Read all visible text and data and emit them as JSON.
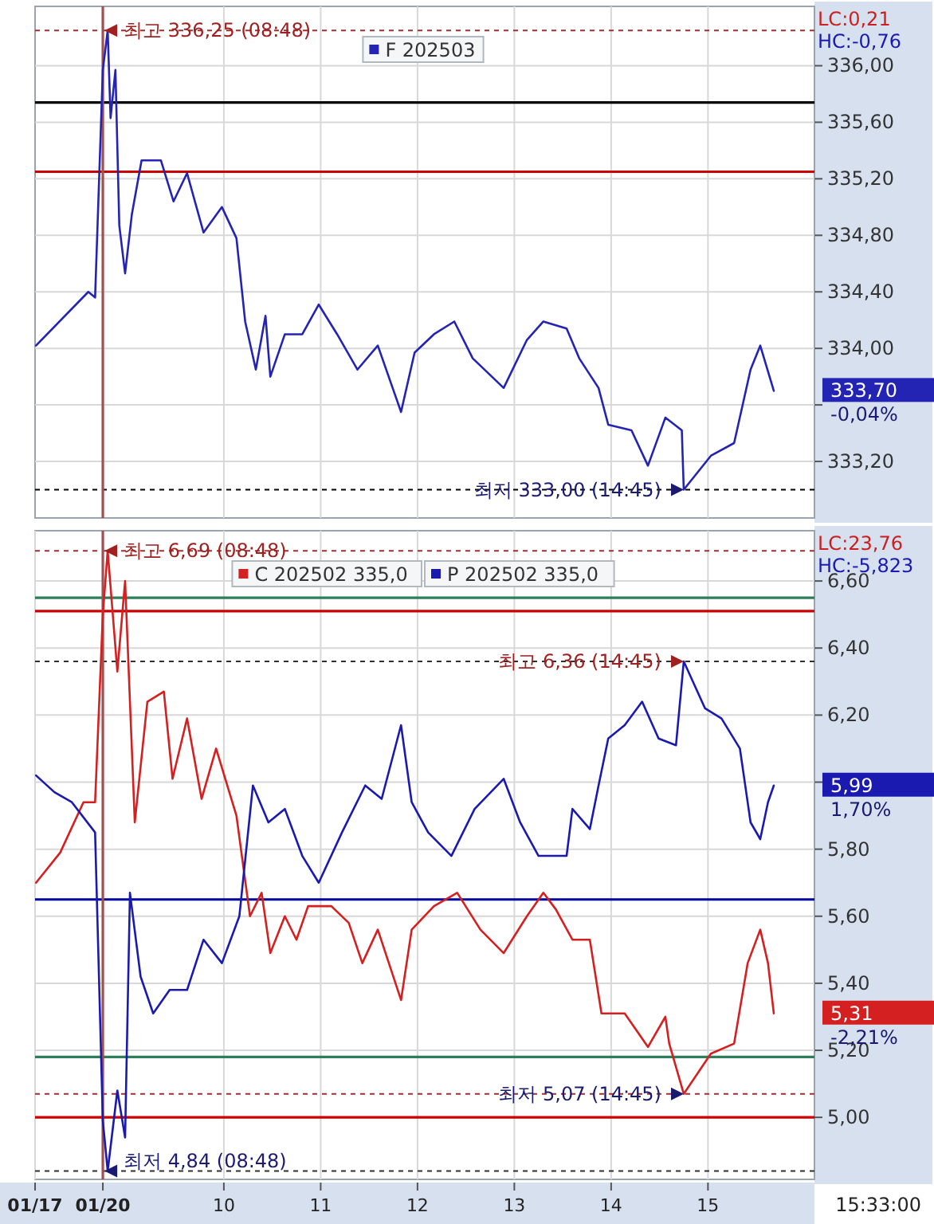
{
  "chart_data": [
    {
      "type": "line",
      "xlim": [
        8.05,
        16.1
      ],
      "ylim": [
        332.8,
        336.42
      ],
      "xticks": [
        {
          "value": 10,
          "label": null
        },
        {
          "value": 11,
          "label": null
        },
        {
          "value": 12,
          "label": null
        },
        {
          "value": 13,
          "label": null
        },
        {
          "value": 14,
          "label": null
        },
        {
          "value": 15,
          "label": null
        }
      ],
      "yticks": [
        {
          "value": 333.2,
          "label": "333,20"
        },
        {
          "value": 333.6,
          "label": null
        },
        {
          "value": 334,
          "label": "334,00"
        },
        {
          "value": 334.4,
          "label": "334,40"
        },
        {
          "value": 334.8,
          "label": "334,80"
        },
        {
          "value": 335.2,
          "label": "335,20"
        },
        {
          "value": 335.6,
          "label": "335,60"
        },
        {
          "value": 336,
          "label": "336,00"
        }
      ],
      "tick_labels": "y",
      "grid": true,
      "legend": "top",
      "line_style": "solid",
      "series": [
        {
          "name": "F 202503",
          "color": "#2424b4",
          "x": [
            8.06,
            8.6,
            8.67,
            8.75,
            8.8,
            8.83,
            8.88,
            8.92,
            8.98,
            9.05,
            9.15,
            9.35,
            9.48,
            9.62,
            9.79,
            9.98,
            10.13,
            10.22,
            10.33,
            10.43,
            10.48,
            10.63,
            10.81,
            10.98,
            11.17,
            11.38,
            11.59,
            11.83,
            11.97,
            12.17,
            12.38,
            12.57,
            12.89,
            13.13,
            13.3,
            13.54,
            13.67,
            13.87,
            13.97,
            14.21,
            14.38,
            14.56,
            14.73,
            14.75,
            15.03,
            15.27,
            15.44,
            15.54,
            15.68
          ],
          "values": [
            334.02,
            334.4,
            334.36,
            335.97,
            336.25,
            335.63,
            335.97,
            334.87,
            334.53,
            334.95,
            335.33,
            335.33,
            335.04,
            335.24,
            334.82,
            335.0,
            334.78,
            334.19,
            333.85,
            334.23,
            333.8,
            334.1,
            334.1,
            334.31,
            334.1,
            333.85,
            334.02,
            333.55,
            333.97,
            334.1,
            334.19,
            333.93,
            333.72,
            334.06,
            334.19,
            334.14,
            333.93,
            333.72,
            333.46,
            333.42,
            333.17,
            333.51,
            333.42,
            333.0,
            333.24,
            333.33,
            333.85,
            334.02,
            333.7
          ]
        }
      ],
      "ref_lines": [
        {
          "axis": "y",
          "value": 335.74,
          "color": "#000000",
          "line_style": "solid"
        },
        {
          "axis": "y",
          "value": 335.25,
          "color": "#cc0000",
          "line_style": "solid"
        },
        {
          "axis": "y",
          "value": 336.25,
          "color": "#a03030",
          "line_style": "dashed"
        },
        {
          "axis": "y",
          "value": 333.0,
          "color": "#000000",
          "line_style": "dashed"
        },
        {
          "axis": "x",
          "value": 8.75,
          "color": "#a05050",
          "line_style": "solid"
        }
      ],
      "annotations": [
        "LC:0,21",
        "HC:-0,76",
        {
          "text": "최고 336,25 (08:48)",
          "x": 8.8,
          "y": 336.25
        },
        {
          "text": "최저 333,00 (14:45)",
          "x": 14.75,
          "y": 333.0
        },
        {
          "text": "333,70",
          "x": 15.68,
          "y": 333.7
        },
        "-0,04%"
      ]
    },
    {
      "type": "line",
      "xlim": [
        8.05,
        16.1
      ],
      "ylim": [
        4.815,
        6.75
      ],
      "xticks": [
        {
          "value": 8.05,
          "label": "01/17"
        },
        {
          "value": 8.75,
          "label": "01/20"
        },
        {
          "value": 10,
          "label": "10"
        },
        {
          "value": 11,
          "label": "11"
        },
        {
          "value": 12,
          "label": "12"
        },
        {
          "value": 13,
          "label": "13"
        },
        {
          "value": 14,
          "label": "14"
        },
        {
          "value": 15,
          "label": "15"
        }
      ],
      "yticks": [
        {
          "value": 5.0,
          "label": "5,00"
        },
        {
          "value": 5.2,
          "label": "5,20"
        },
        {
          "value": 5.4,
          "label": "5,40"
        },
        {
          "value": 5.6,
          "label": "5,60"
        },
        {
          "value": 5.8,
          "label": "5,80"
        },
        {
          "value": 6.0,
          "label": null
        },
        {
          "value": 6.2,
          "label": "6,20"
        },
        {
          "value": 6.4,
          "label": "6,40"
        },
        {
          "value": 6.6,
          "label": "6,60"
        }
      ],
      "grid": true,
      "legend": "top",
      "line_style": "solid",
      "series": [
        {
          "name": "C 202502 335,0",
          "color": "#d42020",
          "x": [
            8.06,
            8.31,
            8.55,
            8.67,
            8.75,
            8.8,
            8.9,
            8.98,
            9.08,
            9.21,
            9.38,
            9.47,
            9.62,
            9.77,
            9.92,
            10.13,
            10.27,
            10.39,
            10.48,
            10.63,
            10.75,
            10.87,
            11.11,
            11.29,
            11.43,
            11.59,
            11.83,
            11.94,
            12.17,
            12.41,
            12.65,
            12.89,
            13.13,
            13.3,
            13.43,
            13.6,
            13.78,
            13.9,
            14.14,
            14.38,
            14.56,
            14.6,
            14.75,
            15.03,
            15.27,
            15.41,
            15.54,
            15.62,
            15.68
          ],
          "values": [
            5.7,
            5.79,
            5.94,
            5.94,
            6.5,
            6.69,
            6.33,
            6.6,
            5.88,
            6.24,
            6.27,
            6.01,
            6.19,
            5.95,
            6.1,
            5.9,
            5.6,
            5.67,
            5.49,
            5.6,
            5.53,
            5.63,
            5.63,
            5.58,
            5.46,
            5.56,
            5.35,
            5.56,
            5.63,
            5.67,
            5.56,
            5.49,
            5.6,
            5.67,
            5.62,
            5.53,
            5.53,
            5.31,
            5.31,
            5.21,
            5.3,
            5.22,
            5.07,
            5.19,
            5.22,
            5.46,
            5.56,
            5.46,
            5.31
          ]
        },
        {
          "name": "P 202502 335,0",
          "color": "#1a1ab0",
          "x": [
            8.06,
            8.25,
            8.43,
            8.67,
            8.75,
            8.8,
            8.9,
            8.98,
            9.03,
            9.14,
            9.27,
            9.44,
            9.62,
            9.79,
            9.98,
            10.16,
            10.3,
            10.46,
            10.63,
            10.81,
            10.98,
            11.22,
            11.46,
            11.63,
            11.83,
            11.94,
            12.11,
            12.35,
            12.59,
            12.89,
            13.06,
            13.25,
            13.54,
            13.6,
            13.78,
            13.87,
            13.97,
            14.14,
            14.32,
            14.49,
            14.67,
            14.75,
            14.97,
            15.14,
            15.33,
            15.44,
            15.54,
            15.62,
            15.68
          ],
          "values": [
            6.02,
            5.97,
            5.94,
            5.85,
            4.99,
            4.84,
            5.08,
            4.94,
            5.67,
            5.42,
            5.31,
            5.38,
            5.38,
            5.53,
            5.46,
            5.6,
            5.99,
            5.88,
            5.92,
            5.78,
            5.7,
            5.85,
            5.99,
            5.95,
            6.17,
            5.94,
            5.85,
            5.78,
            5.92,
            6.01,
            5.88,
            5.78,
            5.78,
            5.92,
            5.86,
            5.99,
            6.13,
            6.17,
            6.24,
            6.13,
            6.11,
            6.36,
            6.22,
            6.19,
            6.1,
            5.88,
            5.83,
            5.94,
            5.99
          ]
        }
      ],
      "ref_lines": [
        {
          "axis": "y",
          "value": 6.55,
          "color": "#2e7d5b",
          "line_style": "solid"
        },
        {
          "axis": "y",
          "value": 6.51,
          "color": "#cc0000",
          "line_style": "solid"
        },
        {
          "axis": "y",
          "value": 5.65,
          "color": "#0000a0",
          "line_style": "solid"
        },
        {
          "axis": "y",
          "value": 5.18,
          "color": "#2e7d5b",
          "line_style": "solid"
        },
        {
          "axis": "y",
          "value": 5.0,
          "color": "#cc0000",
          "line_style": "solid"
        },
        {
          "axis": "y",
          "value": 6.69,
          "color": "#a03030",
          "line_style": "dashed"
        },
        {
          "axis": "y",
          "value": 6.36,
          "color": "#303030",
          "line_style": "dashed"
        },
        {
          "axis": "y",
          "value": 5.07,
          "color": "#a03030",
          "line_style": "dashed"
        },
        {
          "axis": "y",
          "value": 4.84,
          "color": "#303030",
          "line_style": "dashed"
        },
        {
          "axis": "x",
          "value": 8.75,
          "color": "#a05050",
          "line_style": "solid"
        }
      ],
      "annotations": [
        "LC:23,76",
        "HC:-5,823",
        "15:33:00",
        {
          "text": "최고 6,69 (08:48)",
          "x": 8.8,
          "y": 6.69
        },
        {
          "text": "최저 4,84 (08:48)",
          "x": 8.8,
          "y": 4.84
        },
        {
          "text": "최고 6,36 (14:45)",
          "x": 14.75,
          "y": 6.36
        },
        {
          "text": "최저 5,07 (14:45)",
          "x": 14.75,
          "y": 5.07
        },
        {
          "text": "5,99",
          "x": 15.68,
          "y": 5.99
        },
        {
          "text": "5,31",
          "x": 15.68,
          "y": 5.31
        },
        "1,70%",
        "-2,21%"
      ]
    }
  ]
}
